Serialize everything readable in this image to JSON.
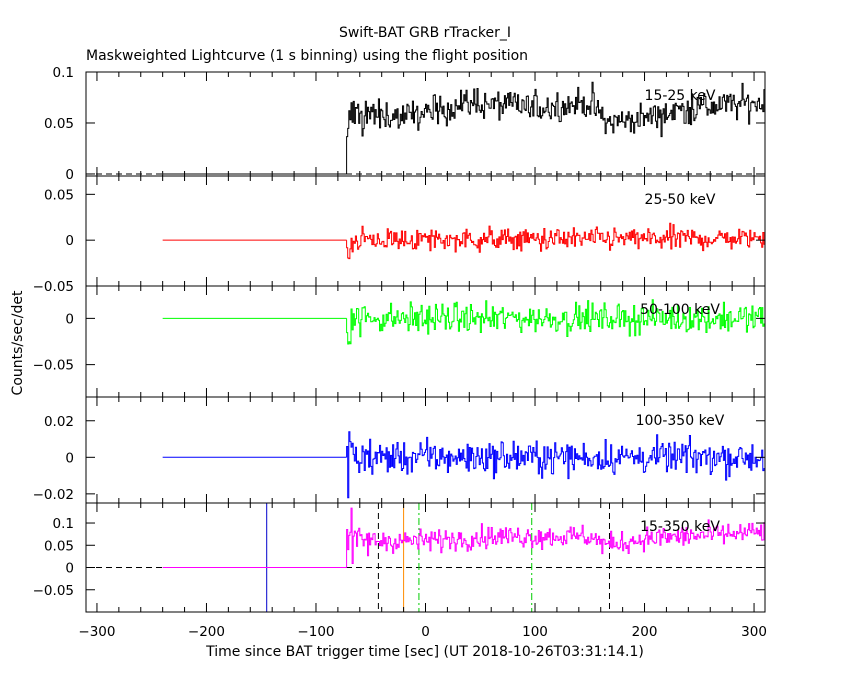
{
  "chart_data": {
    "type": "line",
    "title": "Swift-BAT GRB rTracker_I",
    "subtitle": "Maskweighted Lightcurve (1 s binning) using the flight position",
    "xlabel": "Time since BAT trigger time [sec] (UT 2018-10-26T03:31:14.1)",
    "ylabel": "Counts/sec/det",
    "xlim": [
      -310,
      310
    ],
    "xticks": [
      -300,
      -200,
      -100,
      0,
      100,
      200,
      300
    ],
    "data_start": -240,
    "onset": -72,
    "data_end": 310,
    "grid": false,
    "panels": [
      {
        "label": "15-25 keV",
        "color": "#000000",
        "ylim": [
          -0.002,
          0.1
        ],
        "yticks": [
          0,
          0.05,
          0.1
        ],
        "yticklabels": [
          "0",
          "0.05",
          "0.1"
        ],
        "baseline": 0,
        "level": [
          [
            -72,
            0.06
          ],
          [
            -20,
            0.055
          ],
          [
            0,
            0.06
          ],
          [
            40,
            0.07
          ],
          [
            100,
            0.065
          ],
          [
            150,
            0.07
          ],
          [
            165,
            0.05
          ],
          [
            200,
            0.055
          ],
          [
            240,
            0.065
          ],
          [
            310,
            0.07
          ]
        ],
        "noise": 0.011,
        "zero_line": true
      },
      {
        "label": "25-50 keV",
        "color": "#ff0000",
        "ylim": [
          -0.05,
          0.07
        ],
        "yticks": [
          -0.05,
          0,
          0.05
        ],
        "yticklabels": [
          "−0.05",
          "0",
          "0.05"
        ],
        "baseline": 0,
        "level": [
          [
            -72,
            0
          ],
          [
            310,
            0.002
          ]
        ],
        "noise": 0.009,
        "zero_line": false
      },
      {
        "label": "50-100 keV",
        "color": "#00ff00",
        "ylim": [
          -0.085,
          0.035
        ],
        "yticks": [
          -0.05,
          0
        ],
        "yticklabels": [
          "−0.05",
          "0"
        ],
        "baseline": 0,
        "level": [
          [
            -72,
            0
          ],
          [
            310,
            0
          ]
        ],
        "noise": 0.011,
        "zero_line": false
      },
      {
        "label": "100-350 keV",
        "color": "#0000ff",
        "ylim": [
          -0.025,
          0.033
        ],
        "yticks": [
          -0.02,
          0,
          0.02
        ],
        "yticklabels": [
          "−0.02",
          "0",
          "0.02"
        ],
        "baseline": 0,
        "level": [
          [
            -72,
            0
          ],
          [
            310,
            0
          ]
        ],
        "noise": 0.0065,
        "zero_line": false
      },
      {
        "label": "15-350 keV",
        "color": "#ff00ff",
        "ylim": [
          -0.1,
          0.145
        ],
        "yticks": [
          -0.05,
          0,
          0.05,
          0.1
        ],
        "yticklabels": [
          "−0.05",
          "0",
          "0.05",
          "0.1"
        ],
        "baseline": 0,
        "level": [
          [
            -72,
            0.06
          ],
          [
            0,
            0.06
          ],
          [
            60,
            0.07
          ],
          [
            150,
            0.07
          ],
          [
            165,
            0.05
          ],
          [
            200,
            0.065
          ],
          [
            310,
            0.08
          ]
        ],
        "noise": 0.018,
        "zero_line": true,
        "markers": [
          {
            "x": -145,
            "color": "#0000cc",
            "style": "solid"
          },
          {
            "x": -43,
            "color": "#000000",
            "style": "dash"
          },
          {
            "x": -20,
            "color": "#ff8c00",
            "style": "solid"
          },
          {
            "x": -6,
            "color": "#00cc00",
            "style": "dashdot"
          },
          {
            "x": 97,
            "color": "#00cc00",
            "style": "dashdot"
          },
          {
            "x": 168,
            "color": "#000000",
            "style": "dash"
          }
        ]
      }
    ]
  }
}
